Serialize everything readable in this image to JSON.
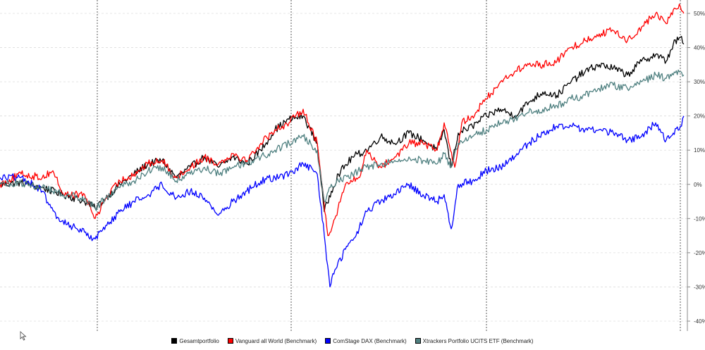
{
  "chart_data": {
    "type": "line",
    "title": "",
    "xlabel": "",
    "ylabel": "",
    "ylim": [
      -42,
      53
    ],
    "y_ticks": [
      -40,
      -30,
      -20,
      -10,
      0,
      10,
      20,
      30,
      40,
      50
    ],
    "y_tick_suffix": "%",
    "y_axis_side": "right",
    "grid": "horizontal-dashed",
    "x_range": [
      0,
      1000
    ],
    "vertical_markers": [
      138,
      413,
      690,
      965
    ],
    "legend_position": "bottom-center",
    "series": [
      {
        "name": "Gesamtportfolio",
        "color": "#000000",
        "points": [
          [
            0,
            0
          ],
          [
            30,
            0.5
          ],
          [
            60,
            -1
          ],
          [
            90,
            -3
          ],
          [
            120,
            -5
          ],
          [
            135,
            -7
          ],
          [
            150,
            -4
          ],
          [
            170,
            0
          ],
          [
            190,
            3
          ],
          [
            210,
            6
          ],
          [
            230,
            7
          ],
          [
            250,
            2
          ],
          [
            270,
            5
          ],
          [
            290,
            8
          ],
          [
            310,
            5
          ],
          [
            330,
            8
          ],
          [
            350,
            6
          ],
          [
            370,
            10
          ],
          [
            390,
            16
          ],
          [
            410,
            19
          ],
          [
            430,
            20
          ],
          [
            450,
            12
          ],
          [
            460,
            -8
          ],
          [
            470,
            -2
          ],
          [
            480,
            3
          ],
          [
            500,
            8
          ],
          [
            520,
            10
          ],
          [
            540,
            14
          ],
          [
            560,
            12
          ],
          [
            580,
            15
          ],
          [
            600,
            13
          ],
          [
            620,
            10
          ],
          [
            630,
            16
          ],
          [
            640,
            5
          ],
          [
            650,
            15
          ],
          [
            670,
            17
          ],
          [
            690,
            20
          ],
          [
            710,
            22
          ],
          [
            730,
            20
          ],
          [
            750,
            24
          ],
          [
            770,
            27
          ],
          [
            790,
            26
          ],
          [
            810,
            30
          ],
          [
            830,
            33
          ],
          [
            850,
            35
          ],
          [
            870,
            34
          ],
          [
            890,
            32
          ],
          [
            910,
            36
          ],
          [
            930,
            38
          ],
          [
            945,
            36
          ],
          [
            955,
            41
          ],
          [
            965,
            43
          ],
          [
            970,
            41
          ]
        ]
      },
      {
        "name": "Vanguard all World (Benchmark)",
        "color": "#ff0000",
        "points": [
          [
            0,
            0
          ],
          [
            30,
            3
          ],
          [
            60,
            2
          ],
          [
            75,
            4
          ],
          [
            90,
            -3
          ],
          [
            120,
            -3
          ],
          [
            135,
            -10
          ],
          [
            150,
            -4
          ],
          [
            170,
            1
          ],
          [
            190,
            3
          ],
          [
            210,
            6
          ],
          [
            230,
            7
          ],
          [
            250,
            2
          ],
          [
            270,
            5
          ],
          [
            290,
            8
          ],
          [
            310,
            6
          ],
          [
            330,
            9
          ],
          [
            350,
            7
          ],
          [
            370,
            12
          ],
          [
            390,
            16
          ],
          [
            410,
            18
          ],
          [
            430,
            22
          ],
          [
            450,
            12
          ],
          [
            465,
            -15
          ],
          [
            475,
            -10
          ],
          [
            490,
            0
          ],
          [
            510,
            2
          ],
          [
            520,
            10
          ],
          [
            540,
            5
          ],
          [
            560,
            8
          ],
          [
            580,
            12
          ],
          [
            600,
            12
          ],
          [
            620,
            10
          ],
          [
            630,
            18
          ],
          [
            645,
            5
          ],
          [
            655,
            18
          ],
          [
            670,
            20
          ],
          [
            690,
            25
          ],
          [
            710,
            30
          ],
          [
            730,
            33
          ],
          [
            750,
            35
          ],
          [
            770,
            35
          ],
          [
            790,
            36
          ],
          [
            810,
            40
          ],
          [
            830,
            42
          ],
          [
            850,
            44
          ],
          [
            870,
            45
          ],
          [
            890,
            42
          ],
          [
            910,
            46
          ],
          [
            930,
            50
          ],
          [
            945,
            47
          ],
          [
            955,
            51
          ],
          [
            965,
            52
          ],
          [
            970,
            50
          ]
        ]
      },
      {
        "name": "ComStage DAX (Benchmark)",
        "color": "#0000ff",
        "points": [
          [
            0,
            2
          ],
          [
            20,
            2
          ],
          [
            40,
            1
          ],
          [
            60,
            -2
          ],
          [
            80,
            -10
          ],
          [
            100,
            -12
          ],
          [
            120,
            -14
          ],
          [
            135,
            -16
          ],
          [
            150,
            -12
          ],
          [
            170,
            -8
          ],
          [
            190,
            -5
          ],
          [
            210,
            -3
          ],
          [
            230,
            0
          ],
          [
            250,
            -4
          ],
          [
            270,
            -2
          ],
          [
            290,
            -4
          ],
          [
            310,
            -9
          ],
          [
            330,
            -5
          ],
          [
            350,
            -2
          ],
          [
            370,
            1
          ],
          [
            390,
            2
          ],
          [
            410,
            3
          ],
          [
            430,
            6
          ],
          [
            450,
            3
          ],
          [
            460,
            -15
          ],
          [
            468,
            -30
          ],
          [
            475,
            -25
          ],
          [
            490,
            -19
          ],
          [
            505,
            -15
          ],
          [
            520,
            -8
          ],
          [
            540,
            -5
          ],
          [
            560,
            -3
          ],
          [
            580,
            0
          ],
          [
            600,
            -3
          ],
          [
            620,
            -5
          ],
          [
            630,
            -3
          ],
          [
            640,
            -13
          ],
          [
            650,
            0
          ],
          [
            670,
            1
          ],
          [
            690,
            4
          ],
          [
            710,
            5
          ],
          [
            730,
            8
          ],
          [
            750,
            12
          ],
          [
            770,
            15
          ],
          [
            790,
            17
          ],
          [
            810,
            17
          ],
          [
            830,
            16
          ],
          [
            850,
            16
          ],
          [
            870,
            15
          ],
          [
            890,
            13
          ],
          [
            910,
            14
          ],
          [
            930,
            18
          ],
          [
            945,
            13
          ],
          [
            955,
            15
          ],
          [
            965,
            17
          ],
          [
            970,
            20
          ]
        ]
      },
      {
        "name": "Xtrackers Portfolio UCITS ETF (Benchmark)",
        "color": "#4f8080",
        "points": [
          [
            0,
            0
          ],
          [
            30,
            0.5
          ],
          [
            60,
            -1
          ],
          [
            90,
            -3
          ],
          [
            120,
            -4
          ],
          [
            135,
            -7
          ],
          [
            150,
            -4
          ],
          [
            170,
            -1
          ],
          [
            190,
            1
          ],
          [
            210,
            4
          ],
          [
            230,
            5
          ],
          [
            250,
            1
          ],
          [
            270,
            3
          ],
          [
            290,
            5
          ],
          [
            310,
            3
          ],
          [
            330,
            5
          ],
          [
            350,
            6
          ],
          [
            370,
            8
          ],
          [
            390,
            10
          ],
          [
            410,
            12
          ],
          [
            430,
            14
          ],
          [
            450,
            10
          ],
          [
            460,
            -5
          ],
          [
            470,
            0
          ],
          [
            480,
            1
          ],
          [
            500,
            3
          ],
          [
            520,
            5
          ],
          [
            540,
            6
          ],
          [
            560,
            7
          ],
          [
            580,
            8
          ],
          [
            600,
            7
          ],
          [
            620,
            6
          ],
          [
            630,
            9
          ],
          [
            640,
            5
          ],
          [
            650,
            12
          ],
          [
            670,
            14
          ],
          [
            690,
            16
          ],
          [
            710,
            18
          ],
          [
            730,
            19
          ],
          [
            750,
            21
          ],
          [
            770,
            22
          ],
          [
            790,
            23
          ],
          [
            810,
            25
          ],
          [
            830,
            26
          ],
          [
            850,
            28
          ],
          [
            870,
            29
          ],
          [
            890,
            28
          ],
          [
            910,
            30
          ],
          [
            930,
            32
          ],
          [
            945,
            31
          ],
          [
            955,
            32
          ],
          [
            965,
            33
          ],
          [
            970,
            32
          ]
        ]
      }
    ]
  },
  "legend": {
    "items": [
      {
        "label": "Gesamtportfolio",
        "color": "#000000"
      },
      {
        "label": "Vanguard all World (Benchmark)",
        "color": "#ff0000"
      },
      {
        "label": "ComStage DAX (Benchmark)",
        "color": "#0000ff"
      },
      {
        "label": "Xtrackers Portfolio UCITS ETF (Benchmark)",
        "color": "#4f8080"
      }
    ]
  },
  "cursor": {
    "icon": "mouse-pointer-icon"
  }
}
